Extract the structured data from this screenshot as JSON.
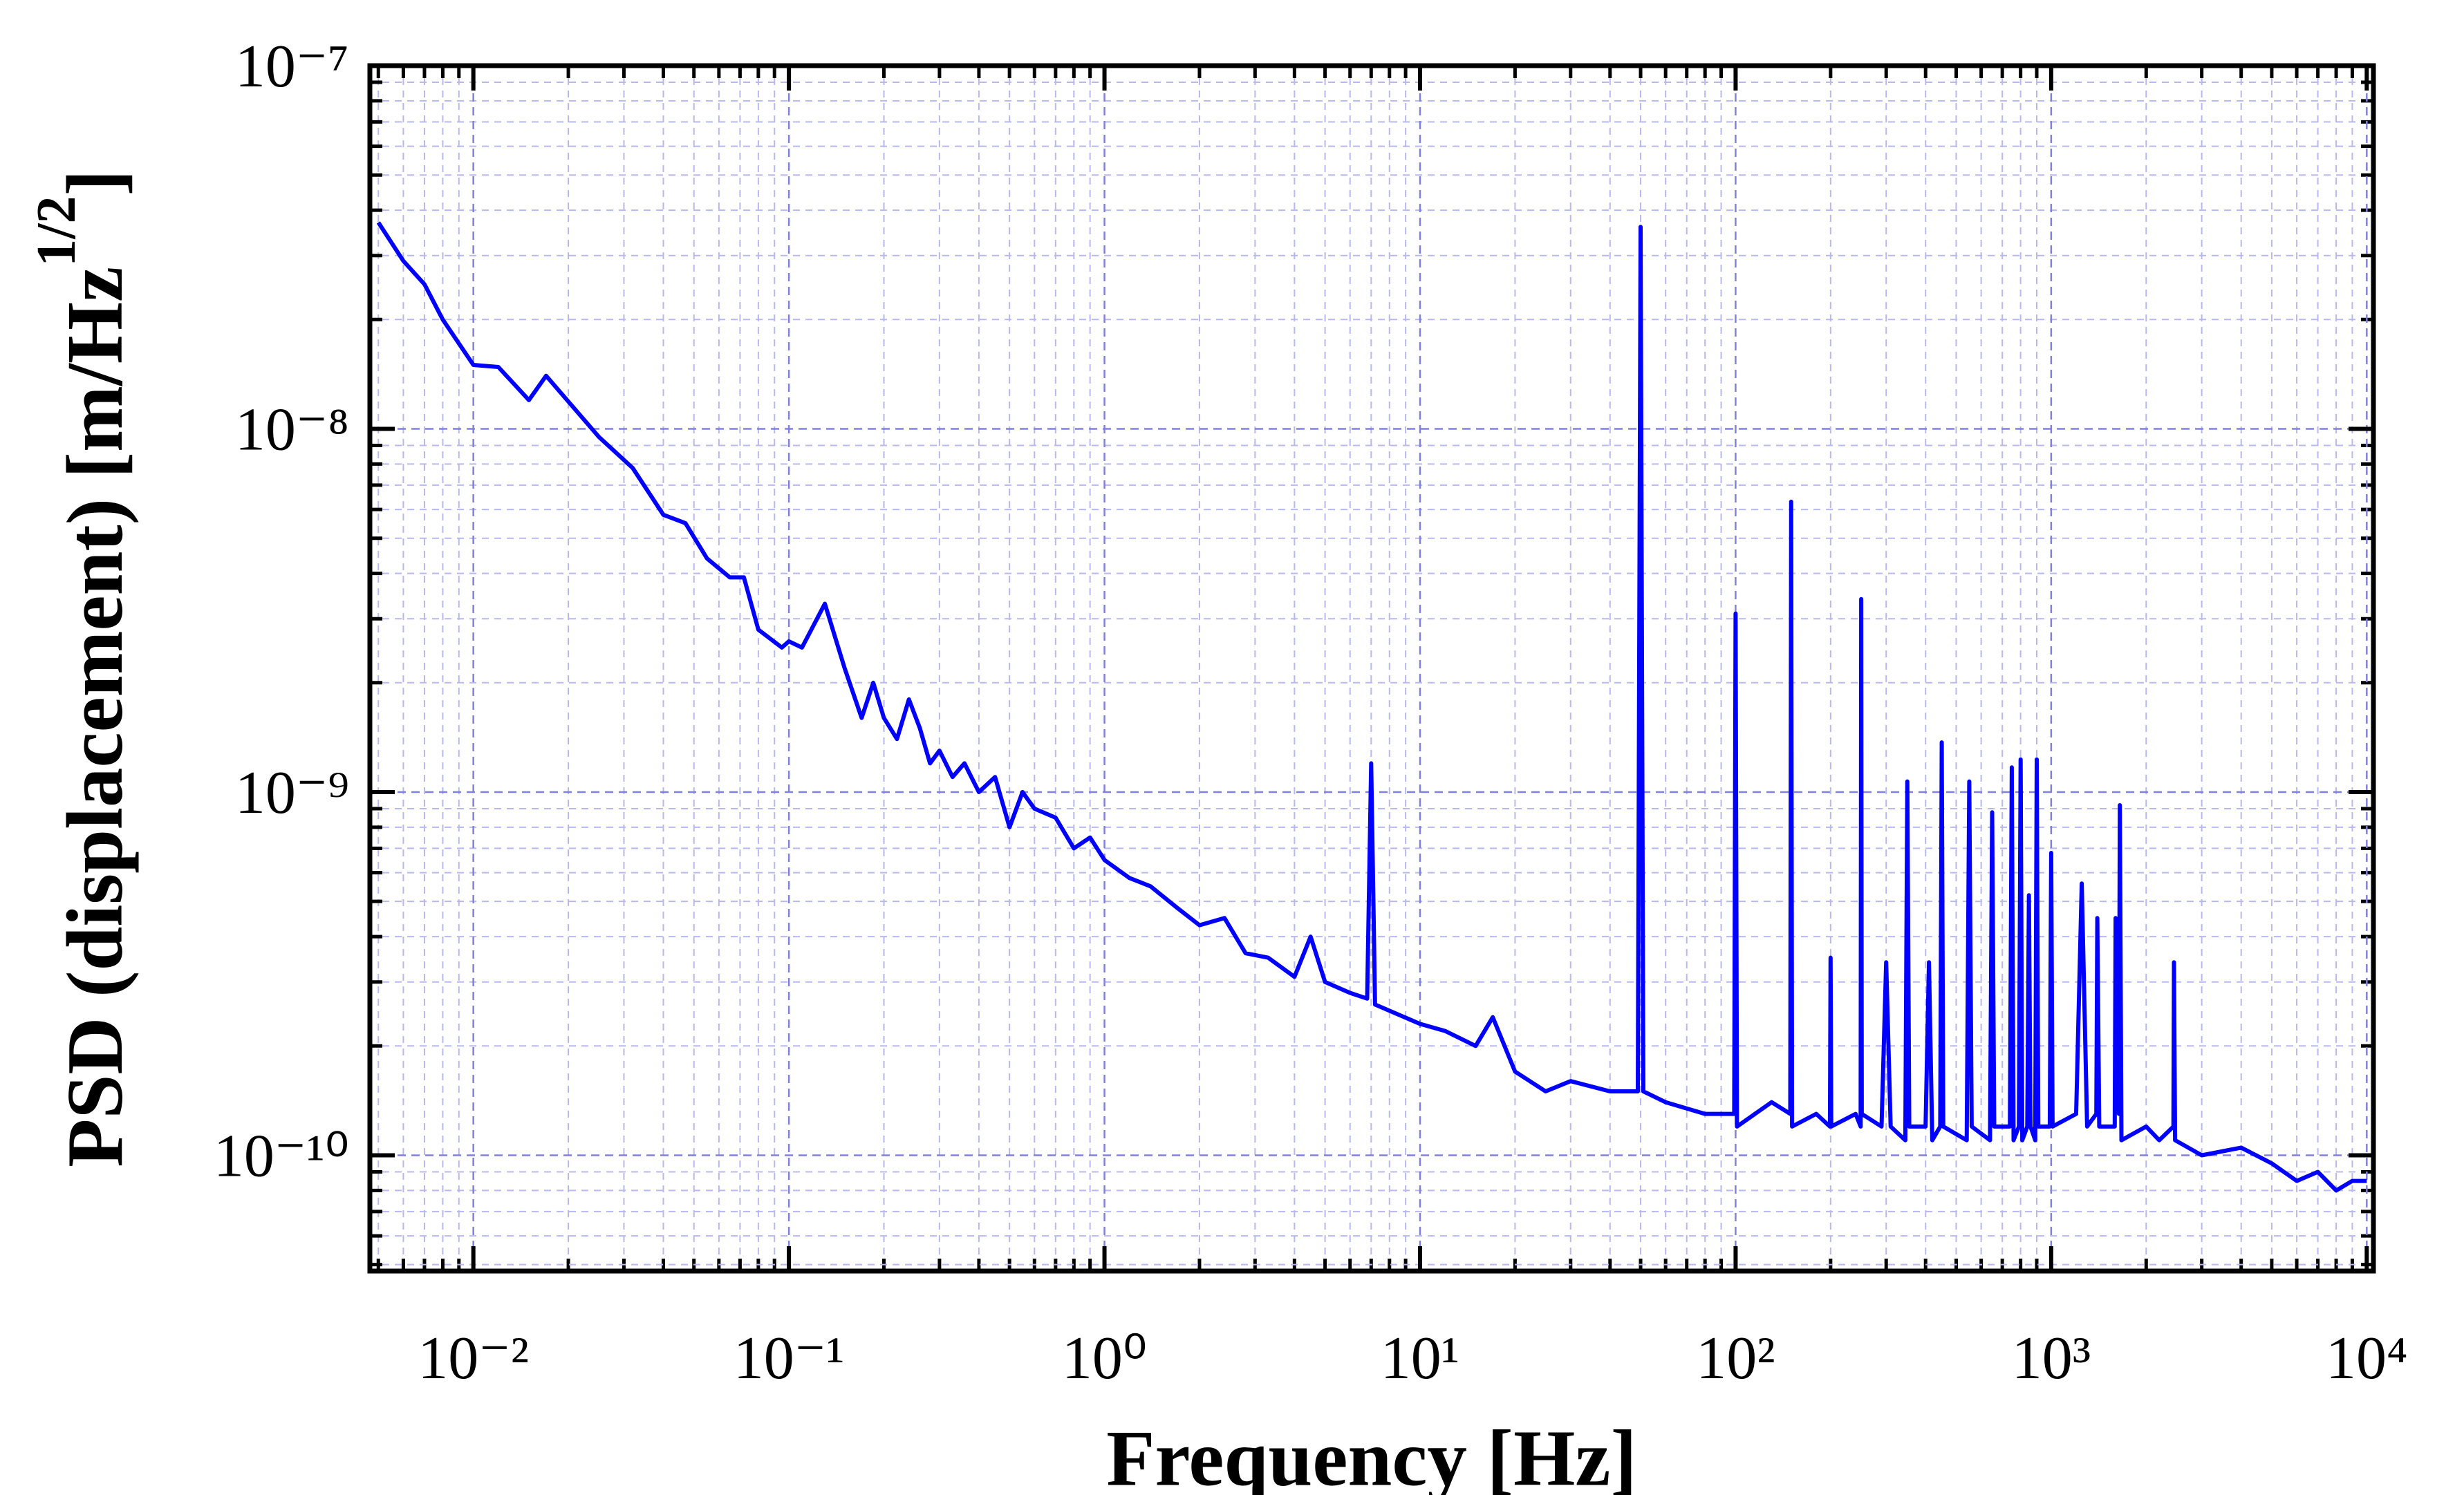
{
  "chart_data": {
    "type": "line",
    "log_x": true,
    "log_y": true,
    "grid": true,
    "minor_grid": true,
    "xlabel": "Frequency [Hz]",
    "ylabel": "PSD (displacement) [m/Hz",
    "ylabel_superscript": "1/2",
    "ylabel_end": "]",
    "xlim": [
      0.0047,
      10500
    ],
    "ylim": [
      4.8e-11,
      1e-07
    ],
    "xticks": [
      {
        "value": 0.01,
        "label": "10⁻²"
      },
      {
        "value": 0.1,
        "label": "10⁻¹"
      },
      {
        "value": 1,
        "label": "10⁰"
      },
      {
        "value": 10,
        "label": "10¹"
      },
      {
        "value": 100,
        "label": "10²"
      },
      {
        "value": 1000,
        "label": "10³"
      },
      {
        "value": 10000,
        "label": "10⁴"
      }
    ],
    "yticks": [
      {
        "value": 1e-10,
        "label": "10⁻¹⁰"
      },
      {
        "value": 1e-09,
        "label": "10⁻⁹"
      },
      {
        "value": 1e-08,
        "label": "10⁻⁸"
      },
      {
        "value": 1e-07,
        "label": "10⁻⁷"
      }
    ],
    "x": [
      0.005,
      0.006,
      0.007,
      0.008,
      0.01,
      0.012,
      0.015,
      0.017,
      0.025,
      0.032,
      0.04,
      0.047,
      0.055,
      0.065,
      0.072,
      0.08,
      0.095,
      0.1,
      0.11,
      0.13,
      0.15,
      0.17,
      0.185,
      0.2,
      0.22,
      0.24,
      0.26,
      0.28,
      0.3,
      0.33,
      0.36,
      0.4,
      0.45,
      0.5,
      0.55,
      0.6,
      0.7,
      0.8,
      0.9,
      1,
      1.2,
      1.4,
      1.7,
      2,
      2.4,
      2.8,
      3.3,
      4,
      4.5,
      5,
      6,
      6.8,
      7,
      7.2,
      8,
      10,
      12,
      15,
      17,
      20,
      25,
      30,
      40,
      49,
      50,
      51,
      60,
      80,
      99,
      100,
      101,
      130,
      149,
      150,
      151,
      180,
      199,
      200,
      201,
      240,
      249,
      250,
      251,
      290,
      300,
      310,
      345,
      350,
      355,
      400,
      410,
      420,
      445,
      450,
      455,
      540,
      550,
      560,
      640,
      650,
      660,
      740,
      750,
      760,
      790,
      800,
      810,
      840,
      850,
      860,
      890,
      900,
      910,
      990,
      1000,
      1010,
      1200,
      1250,
      1300,
      1390,
      1400,
      1420,
      1590,
      1600,
      1640,
      1650,
      1670,
      2000,
      2200,
      2440,
      2450,
      2470,
      3000,
      4000,
      5000,
      6000,
      7000,
      8000,
      9000,
      10000
    ],
    "series": [
      {
        "name": "PSD",
        "color": "#0000ff",
        "values": [
          3.7e-08,
          2.9e-08,
          2.5e-08,
          2e-08,
          1.5e-08,
          1.48e-08,
          1.2e-08,
          1.4e-08,
          9.5e-09,
          7.8e-09,
          5.8e-09,
          5.5e-09,
          4.4e-09,
          3.9e-09,
          3.9e-09,
          2.8e-09,
          2.5e-09,
          2.6e-09,
          2.5e-09,
          3.3e-09,
          2.2e-09,
          1.6e-09,
          2e-09,
          1.6e-09,
          1.4e-09,
          1.8e-09,
          1.5e-09,
          1.2e-09,
          1.3e-09,
          1.1e-09,
          1.2e-09,
          1e-09,
          1.1e-09,
          8e-10,
          1e-09,
          9e-10,
          8.5e-10,
          7e-10,
          7.5e-10,
          6.5e-10,
          5.8e-10,
          5.5e-10,
          4.8e-10,
          4.3e-10,
          4.5e-10,
          3.6e-10,
          3.5e-10,
          3.1e-10,
          4e-10,
          3e-10,
          2.8e-10,
          2.7e-10,
          1.2e-09,
          2.6e-10,
          2.5e-10,
          2.3e-10,
          2.2e-10,
          2e-10,
          2.4e-10,
          1.7e-10,
          1.5e-10,
          1.6e-10,
          1.5e-10,
          1.5e-10,
          3.6e-08,
          1.5e-10,
          1.4e-10,
          1.3e-10,
          1.3e-10,
          3.1e-09,
          1.2e-10,
          1.4e-10,
          1.3e-10,
          6.3e-09,
          1.2e-10,
          1.3e-10,
          1.2e-10,
          3.5e-10,
          1.2e-10,
          1.3e-10,
          1.2e-10,
          3.4e-09,
          1.3e-10,
          1.2e-10,
          3.4e-10,
          1.2e-10,
          1.1e-10,
          1.07e-09,
          1.2e-10,
          1.2e-10,
          3.4e-10,
          1.1e-10,
          1.2e-10,
          1.37e-09,
          1.2e-10,
          1.1e-10,
          1.07e-09,
          1.2e-10,
          1.1e-10,
          8.8e-10,
          1.2e-10,
          1.2e-10,
          1.17e-09,
          1.1e-10,
          1.2e-10,
          1.23e-09,
          1.1e-10,
          1.2e-10,
          5.2e-10,
          1.2e-10,
          1.1e-10,
          1.23e-09,
          1.2e-10,
          1.2e-10,
          6.8e-10,
          1.2e-10,
          1.3e-10,
          5.6e-10,
          1.2e-10,
          1.3e-10,
          4.5e-10,
          1.2e-10,
          1.2e-10,
          4.5e-10,
          1.3e-10,
          9.2e-10,
          1.1e-10,
          1.2e-10,
          1.1e-10,
          1.2e-10,
          3.4e-10,
          1.1e-10,
          1e-10,
          1.05e-10,
          9.5e-11,
          8.5e-11,
          9e-11,
          8e-11,
          8.5e-11,
          8.5e-11
        ]
      }
    ]
  }
}
